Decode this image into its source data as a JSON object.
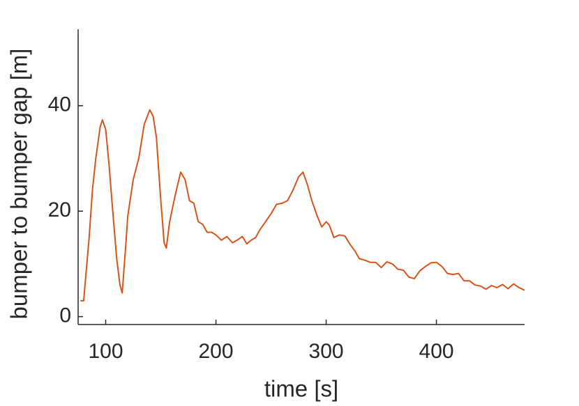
{
  "chart_data": {
    "type": "line",
    "x_label": "time [s]",
    "y_label": "bumper to bumper gap [m]",
    "xlim": [
      75,
      480
    ],
    "ylim": [
      -1.5,
      54.5
    ],
    "xticks": [
      100,
      200,
      300,
      400
    ],
    "yticks": [
      0,
      20,
      40
    ],
    "series": [
      {
        "color": "#d95319",
        "x": [
          77,
          80,
          85,
          88,
          91,
          95,
          97,
          100,
          103,
          106,
          110,
          113,
          115,
          118,
          120,
          125,
          130,
          135,
          140,
          143,
          146,
          150,
          153,
          155,
          158,
          163,
          168,
          172,
          176,
          180,
          184,
          188,
          192,
          196,
          200,
          205,
          210,
          215,
          220,
          224,
          228,
          232,
          236,
          240,
          245,
          250,
          255,
          260,
          265,
          270,
          275,
          279,
          283,
          287,
          292,
          296,
          300,
          303,
          307,
          312,
          317,
          322,
          326,
          330,
          335,
          340,
          345,
          350,
          355,
          360,
          365,
          370,
          375,
          380,
          385,
          390,
          395,
          400,
          405,
          410,
          415,
          420,
          425,
          430,
          435,
          440,
          445,
          450,
          455,
          460,
          465,
          470,
          475,
          480
        ],
        "values": [
          3,
          3,
          15,
          24,
          30,
          36,
          37.3,
          35.5,
          29,
          21,
          11,
          6,
          4.5,
          13,
          19,
          26,
          30,
          36.5,
          39.2,
          38,
          34,
          22,
          14,
          13,
          18,
          23,
          27.4,
          26,
          22,
          21.5,
          18,
          17.5,
          16,
          16,
          15.5,
          14.5,
          15.2,
          14,
          14.6,
          15.2,
          13.8,
          14.5,
          15,
          16.5,
          18,
          19.5,
          21.3,
          21.5,
          22,
          24,
          26.5,
          27.4,
          25,
          22,
          19,
          17,
          18,
          17.3,
          15,
          15.5,
          15.3,
          13.6,
          12.5,
          11,
          10.7,
          10.3,
          10.3,
          9.3,
          10.4,
          10,
          9,
          8.8,
          7.5,
          7.2,
          8.7,
          9.5,
          10.2,
          10.3,
          9.5,
          8.2,
          8,
          8.2,
          6.8,
          6.8,
          6,
          5.8,
          5.2,
          5.9,
          5.5,
          6.1,
          5.3,
          6.2,
          5.5,
          5
        ]
      }
    ]
  }
}
